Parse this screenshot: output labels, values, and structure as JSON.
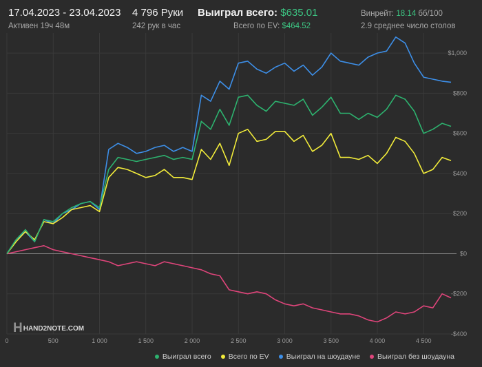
{
  "header": {
    "date_range": "17.04.2023 - 23.04.2023",
    "active": "Активен 19ч 48м",
    "hands": "4 796 Руки",
    "hands_per_hour": "242 рук в час",
    "won_label": "Выиграл всего:",
    "won_value": "$635.01",
    "ev_label": "Всего по EV:",
    "ev_value": "$464.52",
    "winrate_label": "Винрейт:",
    "winrate_value": "18.14",
    "winrate_unit": "бб/100",
    "tables": "2.9 среднее число столов"
  },
  "logo": {
    "mark": "H",
    "text": "HAND2NOTE.COM"
  },
  "colors": {
    "background": "#2b2b2b",
    "won": "#2db36f",
    "ev": "#f2ec3a",
    "showdown": "#3d8fe8",
    "non_showdown": "#e0457b"
  },
  "chart_data": {
    "type": "line",
    "xlabel": "",
    "ylabel": "",
    "xlim": [
      0,
      4796
    ],
    "ylim": [
      -400,
      1100
    ],
    "x_ticks": [
      0,
      500,
      1000,
      1500,
      2000,
      2500,
      3000,
      3500,
      4000,
      4500
    ],
    "x_tick_labels": [
      "0",
      "500",
      "1 000",
      "1 500",
      "2 000",
      "2 500",
      "3 000",
      "3 500",
      "4 000",
      "4 500"
    ],
    "y_ticks": [
      1000,
      800,
      600,
      400,
      200,
      0,
      -200,
      -400
    ],
    "y_tick_labels": [
      "$1,000",
      "$800",
      "$600",
      "$400",
      "$200",
      "$0",
      "-$200",
      "-$400"
    ],
    "grid": true,
    "legend_position": "bottom-right",
    "x": [
      0,
      100,
      200,
      300,
      400,
      500,
      600,
      700,
      800,
      900,
      1000,
      1100,
      1200,
      1300,
      1400,
      1500,
      1600,
      1700,
      1800,
      1900,
      2000,
      2100,
      2200,
      2300,
      2400,
      2500,
      2600,
      2700,
      2800,
      2900,
      3000,
      3100,
      3200,
      3300,
      3400,
      3500,
      3600,
      3700,
      3800,
      3900,
      4000,
      4100,
      4200,
      4300,
      4400,
      4500,
      4600,
      4700,
      4796
    ],
    "series": [
      {
        "name": "Выиграл всего",
        "color": "#2db36f",
        "values": [
          0,
          70,
          120,
          60,
          170,
          160,
          200,
          230,
          250,
          260,
          230,
          420,
          480,
          470,
          460,
          470,
          480,
          490,
          470,
          480,
          470,
          660,
          620,
          720,
          640,
          780,
          790,
          740,
          710,
          760,
          750,
          740,
          770,
          690,
          730,
          780,
          700,
          700,
          670,
          700,
          680,
          720,
          790,
          770,
          710,
          600,
          620,
          650,
          635
        ]
      },
      {
        "name": "Всего по EV",
        "color": "#f2ec3a",
        "values": [
          0,
          60,
          110,
          70,
          160,
          150,
          180,
          220,
          230,
          240,
          210,
          380,
          430,
          420,
          400,
          380,
          390,
          420,
          380,
          380,
          370,
          520,
          470,
          550,
          440,
          600,
          620,
          560,
          570,
          610,
          610,
          560,
          590,
          510,
          540,
          600,
          480,
          480,
          470,
          490,
          450,
          500,
          580,
          560,
          500,
          400,
          420,
          480,
          464
        ]
      },
      {
        "name": "Выиграл на шоудауне",
        "color": "#3d8fe8",
        "values": [
          0,
          70,
          110,
          60,
          170,
          150,
          200,
          220,
          250,
          260,
          220,
          520,
          550,
          530,
          500,
          510,
          530,
          540,
          510,
          530,
          510,
          790,
          760,
          860,
          820,
          950,
          960,
          920,
          900,
          930,
          950,
          910,
          940,
          890,
          930,
          1000,
          960,
          950,
          940,
          980,
          1000,
          1010,
          1080,
          1050,
          950,
          880,
          870,
          860,
          855
        ]
      },
      {
        "name": "Выиграл без шоудауна",
        "color": "#e0457b",
        "values": [
          0,
          10,
          20,
          30,
          40,
          20,
          10,
          0,
          -10,
          -20,
          -30,
          -40,
          -60,
          -50,
          -40,
          -50,
          -60,
          -40,
          -50,
          -60,
          -70,
          -80,
          -100,
          -110,
          -180,
          -190,
          -200,
          -190,
          -200,
          -230,
          -250,
          -260,
          -250,
          -270,
          -280,
          -290,
          -300,
          -300,
          -310,
          -330,
          -340,
          -320,
          -290,
          -300,
          -290,
          -260,
          -270,
          -200,
          -220
        ]
      }
    ]
  }
}
